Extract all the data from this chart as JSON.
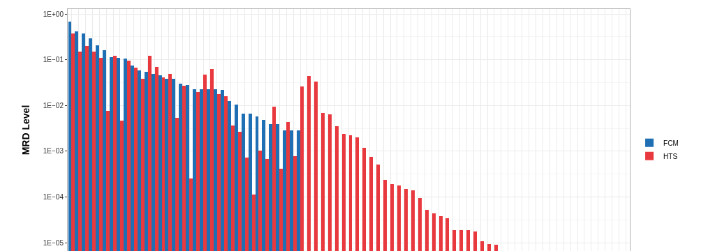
{
  "chart_data": {
    "type": "bar",
    "ylabel": "MRD Level",
    "log": "y",
    "grid": true,
    "legend": "right",
    "tick_labels": "y",
    "categories": [
      null,
      null,
      null,
      null,
      null,
      null,
      null,
      null,
      null,
      null,
      null,
      null,
      null,
      null,
      null,
      null,
      null,
      null,
      null,
      null,
      null,
      null,
      null,
      null,
      null,
      null,
      null,
      null,
      null,
      null,
      null,
      null,
      null,
      null,
      null,
      null,
      null,
      null,
      null,
      null,
      null,
      null,
      null,
      null,
      null,
      null,
      null,
      null,
      null,
      null,
      null,
      null,
      null,
      null,
      null,
      null,
      null,
      null,
      null,
      null,
      null,
      null,
      null,
      null,
      null,
      null,
      null,
      null,
      null,
      null,
      null,
      null,
      null,
      null,
      null,
      null,
      null,
      null,
      null,
      null,
      null
    ],
    "ylim": [
      6.6e-06,
      1.28
    ],
    "yticks": [
      {
        "value": 1,
        "label": "1E+00"
      },
      {
        "value": 0.1,
        "label": "1E−01"
      },
      {
        "value": 0.01,
        "label": "1E−02"
      },
      {
        "value": 0.001,
        "label": "1E−03"
      },
      {
        "value": 0.0001,
        "label": "1E−04"
      },
      {
        "value": 1e-05,
        "label": "1E−05"
      }
    ],
    "series": [
      {
        "name": "FCM",
        "color": "#1f6fb4",
        "values": [
          0.68,
          0.42,
          0.38,
          0.29,
          0.21,
          0.16,
          0.115,
          0.11,
          0.107,
          0.074,
          0.059,
          0.054,
          0.049,
          0.046,
          0.039,
          0.038,
          0.03,
          0.028,
          0.023,
          0.023,
          0.023,
          0.023,
          0.022,
          0.0124,
          0.0104,
          0.0066,
          0.0066,
          0.0058,
          0.0048,
          0.0039,
          0.0039,
          0.0029,
          0.0029,
          0.0029,
          null,
          null,
          null,
          null,
          null,
          null,
          null,
          null,
          null,
          null,
          null,
          null,
          null,
          null,
          null,
          null,
          null,
          null,
          null,
          null,
          null,
          null,
          null,
          null,
          null,
          null,
          null,
          null,
          null,
          null,
          null,
          null,
          null,
          null,
          null,
          null,
          null,
          null,
          null,
          null,
          null,
          null,
          null,
          null,
          null,
          null,
          null
        ]
      },
      {
        "name": "HTS",
        "color": "#e8393f",
        "values": [
          0.37,
          0.15,
          0.2,
          0.15,
          0.11,
          0.0076,
          0.12,
          0.0046,
          0.094,
          0.068,
          0.039,
          0.12,
          0.07,
          0.041,
          0.049,
          0.0053,
          0.027,
          0.00025,
          0.02,
          0.047,
          0.062,
          0.018,
          0.016,
          0.0037,
          0.0027,
          0.00073,
          0.000112,
          0.00103,
          0.00068,
          0.0095,
          0.00041,
          0.0044,
          0.00079,
          0.026,
          0.044,
          0.033,
          0.0069,
          0.0063,
          0.0035,
          0.0024,
          0.0022,
          0.002,
          0.00118,
          0.00074,
          0.00051,
          0.00024,
          0.00019,
          0.000178,
          0.000152,
          0.000142,
          9.4e-05,
          5.2e-05,
          4.4e-05,
          3.8e-05,
          3.4e-05,
          1.88e-05,
          1.88e-05,
          1.88e-05,
          1.78e-05,
          1.09e-05,
          9.3e-06,
          9.2e-06,
          null,
          null,
          null,
          null,
          null,
          null,
          null,
          null,
          null,
          null,
          null,
          null,
          null,
          null,
          null,
          null,
          null,
          null,
          null
        ]
      }
    ]
  }
}
